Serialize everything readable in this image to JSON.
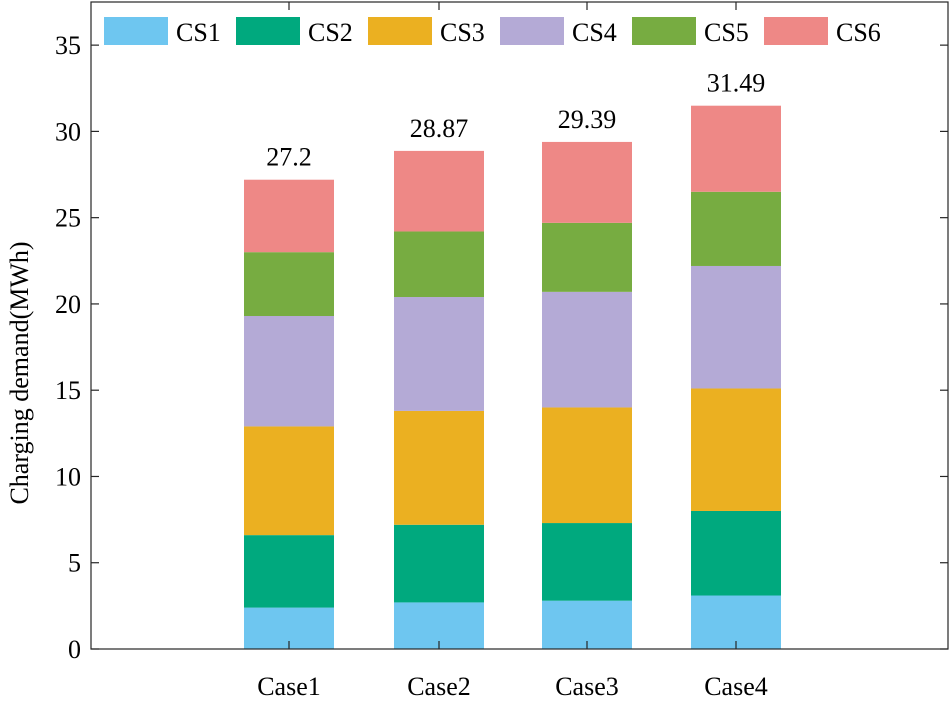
{
  "chart_data": {
    "type": "bar",
    "stacked": true,
    "title": "",
    "xlabel": "",
    "ylabel": "Charging demand(MWh)",
    "ylim": [
      0,
      37.5
    ],
    "yticks": [
      0,
      5,
      10,
      15,
      20,
      25,
      30,
      35
    ],
    "grid": false,
    "legend_position": "top",
    "categories": [
      "Case1",
      "Case2",
      "Case3",
      "Case4"
    ],
    "totals": [
      "27.2",
      "28.87",
      "29.39",
      "31.49"
    ],
    "series": [
      {
        "name": "CS1",
        "color": "#6ec6f0",
        "values": [
          2.4,
          2.7,
          2.8,
          3.1
        ]
      },
      {
        "name": "CS2",
        "color": "#00a97e",
        "values": [
          4.2,
          4.5,
          4.5,
          4.9
        ]
      },
      {
        "name": "CS3",
        "color": "#ebb021",
        "values": [
          6.3,
          6.6,
          6.7,
          7.1
        ]
      },
      {
        "name": "CS4",
        "color": "#b4aad6",
        "values": [
          6.4,
          6.6,
          6.7,
          7.1
        ]
      },
      {
        "name": "CS5",
        "color": "#77ac41",
        "values": [
          3.7,
          3.8,
          4.0,
          4.3
        ]
      },
      {
        "name": "CS6",
        "color": "#ee8886",
        "values": [
          4.2,
          4.67,
          4.69,
          4.99
        ]
      }
    ]
  }
}
